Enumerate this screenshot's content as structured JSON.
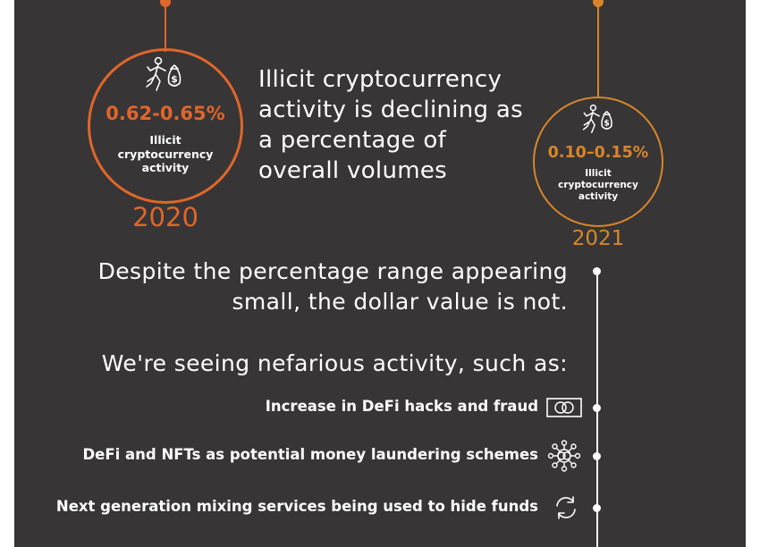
{
  "timeline": {
    "colors": {
      "background": "#373536",
      "orange": "#e0662a",
      "amber": "#d8862a",
      "white": "#ffffff"
    },
    "period_2020": {
      "percentage": "0.62-0.65%",
      "label_lines": [
        "Illicit",
        "cryptocurrency",
        "activity"
      ],
      "year": "2020",
      "icon": "person-with-money-bag-icon"
    },
    "headline_lines": [
      "Illicit cryptocurrency",
      "activity is declining as",
      "a percentage of",
      "overall volumes"
    ],
    "period_2021": {
      "percentage": "0.10–0.15%",
      "label_lines": [
        "Illicit",
        "cryptocurrency",
        "activity"
      ],
      "year": "2021",
      "icon": "person-with-money-bag-icon"
    },
    "statement_lines": [
      "Despite the percentage range appearing",
      "small, the dollar value is not."
    ],
    "intro": "We're seeing nefarious activity, such as:",
    "items": [
      {
        "text": "Increase in DeFi hacks and fraud",
        "icon": "credit-card-icon"
      },
      {
        "text": "DeFi and NFTs as potential money laundering schemes",
        "icon": "network-icon"
      },
      {
        "text": "Next generation mixing services being used to hide funds",
        "icon": "refresh-icon"
      }
    ]
  }
}
